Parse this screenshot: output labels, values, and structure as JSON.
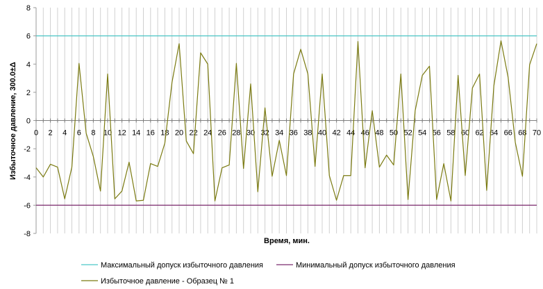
{
  "chart_data": {
    "type": "line",
    "xlabel": "Время, мин.",
    "ylabel": "Избыточное давление, 300.0±Δ",
    "xlim": [
      0,
      70
    ],
    "ylim": [
      -8,
      8
    ],
    "x_ticks": [
      0,
      2,
      4,
      6,
      8,
      10,
      12,
      14,
      16,
      18,
      20,
      22,
      24,
      26,
      28,
      30,
      32,
      34,
      36,
      38,
      40,
      42,
      44,
      46,
      48,
      50,
      52,
      54,
      56,
      58,
      60,
      62,
      64,
      66,
      68,
      70
    ],
    "y_ticks": [
      8,
      6,
      4,
      2,
      0,
      -2,
      -4,
      -6,
      -8
    ],
    "grid": "vertical",
    "legend_position": "bottom",
    "x": [
      0,
      1,
      2,
      3,
      4,
      5,
      6,
      7,
      8,
      9,
      10,
      11,
      12,
      13,
      14,
      15,
      16,
      17,
      18,
      19,
      20,
      21,
      22,
      23,
      24,
      25,
      26,
      27,
      28,
      29,
      30,
      31,
      32,
      33,
      34,
      35,
      36,
      37,
      38,
      39,
      40,
      41,
      42,
      43,
      44,
      45,
      46,
      47,
      48,
      49,
      50,
      51,
      52,
      53,
      54,
      55,
      56,
      57,
      58,
      59,
      60,
      61,
      62,
      63,
      64,
      65,
      66,
      67,
      68,
      69,
      70
    ],
    "series": [
      {
        "name": "Максимальный допуск избыточного давления",
        "color": "#4bc6c6",
        "values": [
          6,
          6,
          6,
          6,
          6,
          6,
          6,
          6,
          6,
          6,
          6,
          6,
          6,
          6,
          6,
          6,
          6,
          6,
          6,
          6,
          6,
          6,
          6,
          6,
          6,
          6,
          6,
          6,
          6,
          6,
          6,
          6,
          6,
          6,
          6,
          6,
          6,
          6,
          6,
          6,
          6,
          6,
          6,
          6,
          6,
          6,
          6,
          6,
          6,
          6,
          6,
          6,
          6,
          6,
          6,
          6,
          6,
          6,
          6,
          6,
          6,
          6,
          6,
          6,
          6,
          6,
          6,
          6,
          6,
          6,
          6
        ]
      },
      {
        "name": "Минимальный допуск избыточного давления",
        "color": "#7b2b6e",
        "values": [
          -6,
          -6,
          -6,
          -6,
          -6,
          -6,
          -6,
          -6,
          -6,
          -6,
          -6,
          -6,
          -6,
          -6,
          -6,
          -6,
          -6,
          -6,
          -6,
          -6,
          -6,
          -6,
          -6,
          -6,
          -6,
          -6,
          -6,
          -6,
          -6,
          -6,
          -6,
          -6,
          -6,
          -6,
          -6,
          -6,
          -6,
          -6,
          -6,
          -6,
          -6,
          -6,
          -6,
          -6,
          -6,
          -6,
          -6,
          -6,
          -6,
          -6,
          -6,
          -6,
          -6,
          -6,
          -6,
          -6,
          -6,
          -6,
          -6,
          -6,
          -6,
          -6,
          -6,
          -6,
          -6,
          -6,
          -6,
          -6,
          -6,
          -6,
          -6
        ]
      },
      {
        "name": "Избыточное давление - Образец № 1",
        "color": "#7a7a10",
        "values": [
          -3.35,
          -4.0,
          -3.1,
          -3.3,
          -5.55,
          -3.3,
          4.05,
          -0.9,
          -2.55,
          -5.0,
          3.3,
          -5.55,
          -5.0,
          -2.95,
          -5.7,
          -5.65,
          -3.05,
          -3.25,
          -1.6,
          2.7,
          5.45,
          -1.45,
          -2.35,
          4.8,
          4.0,
          -5.7,
          -3.35,
          -3.15,
          4.05,
          -3.4,
          2.6,
          -5.05,
          0.9,
          -3.95,
          -1.4,
          -3.9,
          3.3,
          5.05,
          3.3,
          -3.25,
          3.3,
          -3.9,
          -5.65,
          -3.9,
          -3.9,
          5.6,
          -3.35,
          0.7,
          -3.3,
          -2.45,
          -3.15,
          3.3,
          -5.6,
          0.7,
          3.2,
          3.85,
          -5.6,
          -3.05,
          -5.7,
          3.2,
          -3.9,
          2.3,
          3.3,
          -4.95,
          2.45,
          5.65,
          3.05,
          -1.55,
          -3.95,
          3.95,
          5.45
        ]
      }
    ]
  }
}
